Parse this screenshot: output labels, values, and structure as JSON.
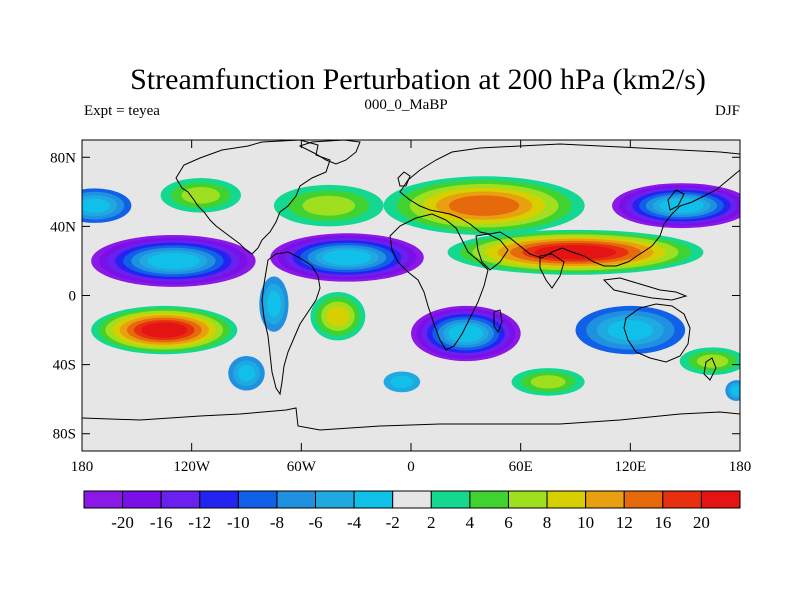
{
  "title": "Streamfunction Perturbation at 200 hPa (km2/s)",
  "left_label": "Expt = teyea",
  "center_label": "000_0_MaBP",
  "right_label": "DJF",
  "map": {
    "lon_range": [
      -180,
      180
    ],
    "lat_range": [
      -90,
      90
    ],
    "x_ticks": [
      "180",
      "120W",
      "60W",
      "0",
      "60E",
      "120E",
      "180"
    ],
    "y_ticks": [
      "80N",
      "40N",
      "0",
      "40S",
      "80S"
    ],
    "fill_color": "#e6e6e6",
    "features": [
      {
        "name": "n-pacific-cyclone",
        "lon": -173,
        "lat": 52,
        "rlon": 20,
        "rlat": 10,
        "value": -8
      },
      {
        "name": "n-pacific-anticyclone",
        "lon": -115,
        "lat": 58,
        "rlon": 22,
        "rlat": 10,
        "value": 6
      },
      {
        "name": "atlantic-anticyclone",
        "lon": -45,
        "lat": 52,
        "rlon": 30,
        "rlat": 12,
        "value": 6
      },
      {
        "name": "eurasian-anticyclone",
        "lon": 40,
        "lat": 52,
        "rlon": 55,
        "rlat": 17,
        "value": 12
      },
      {
        "name": "nw-pacific-cyclone",
        "lon": 148,
        "lat": 52,
        "rlon": 38,
        "rlat": 13,
        "value": -20
      },
      {
        "name": "pacific-low",
        "lon": -130,
        "lat": 20,
        "rlon": 45,
        "rlat": 15,
        "value": -20
      },
      {
        "name": "atlantic-low",
        "lon": -35,
        "lat": 22,
        "rlon": 42,
        "rlat": 14,
        "value": -20
      },
      {
        "name": "asian-high",
        "lon": 90,
        "lat": 25,
        "rlon": 70,
        "rlat": 13,
        "value": 20
      },
      {
        "name": "s-pacific-high",
        "lon": -135,
        "lat": -20,
        "rlon": 40,
        "rlat": 14,
        "value": 20
      },
      {
        "name": "s-atlantic-high",
        "lon": -40,
        "lat": -12,
        "rlon": 15,
        "rlat": 14,
        "value": 8
      },
      {
        "name": "indian-ocean-low",
        "lon": 30,
        "lat": -22,
        "rlon": 30,
        "rlat": 16,
        "value": -20
      },
      {
        "name": "australia-low",
        "lon": 120,
        "lat": -20,
        "rlon": 30,
        "rlat": 14,
        "value": -8
      },
      {
        "name": "s-america-low",
        "lon": -75,
        "lat": -5,
        "rlon": 8,
        "rlat": 16,
        "value": -6
      },
      {
        "name": "se-pacific-low",
        "lon": -90,
        "lat": -45,
        "rlon": 10,
        "rlat": 10,
        "value": -6
      },
      {
        "name": "s-indian-high",
        "lon": 75,
        "lat": -50,
        "rlon": 20,
        "rlat": 8,
        "value": 6
      },
      {
        "name": "s-pacific-east-high",
        "lon": 165,
        "lat": -38,
        "rlon": 18,
        "rlat": 8,
        "value": 6
      },
      {
        "name": "s-atlantic-west-low",
        "lon": -5,
        "lat": -50,
        "rlon": 10,
        "rlat": 6,
        "value": -4
      },
      {
        "name": "antarctic-low",
        "lon": 178,
        "lat": -55,
        "rlon": 6,
        "rlat": 6,
        "value": -6
      }
    ]
  },
  "colorbar": {
    "labels": [
      "-20",
      "-16",
      "-12",
      "-10",
      "-8",
      "-6",
      "-4",
      "-2",
      "2",
      "4",
      "6",
      "8",
      "10",
      "12",
      "16",
      "20"
    ],
    "colors": [
      "#8a18e6",
      "#7a10e8",
      "#6a20ee",
      "#2424f2",
      "#1060e8",
      "#2090e0",
      "#20a8e0",
      "#10c0e8",
      "#e6e6e6",
      "#14d890",
      "#40d230",
      "#a0de20",
      "#d6d000",
      "#e8a010",
      "#e66a0c",
      "#e83010",
      "#e41414"
    ]
  }
}
